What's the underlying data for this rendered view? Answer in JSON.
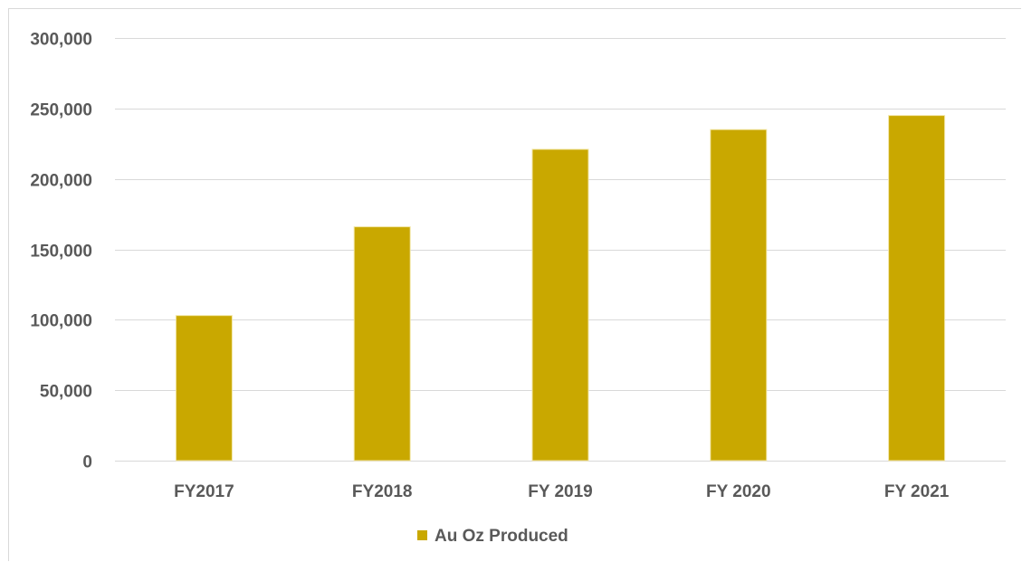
{
  "chart_data": {
    "type": "bar",
    "categories": [
      "FY2017",
      "FY2018",
      "FY 2019",
      "FY 2020",
      "FY 2021"
    ],
    "series": [
      {
        "name": "Au Oz Produced",
        "values": [
          103000,
          166000,
          221000,
          235000,
          245000
        ],
        "color": "#c9a800"
      }
    ],
    "title": "",
    "xlabel": "",
    "ylabel": "",
    "ylim": [
      0,
      300000
    ],
    "yticks": [
      {
        "value": 0,
        "label": "0"
      },
      {
        "value": 50000,
        "label": "50,000"
      },
      {
        "value": 100000,
        "label": "100,000"
      },
      {
        "value": 150000,
        "label": "150,000"
      },
      {
        "value": 200000,
        "label": "200,000"
      },
      {
        "value": 250000,
        "label": "250,000"
      },
      {
        "value": 300000,
        "label": "300,000"
      }
    ],
    "grid": true,
    "legend": "bottom",
    "gridline_color": "#d9d9d9",
    "bar_edge_color": "#f2e6a6"
  }
}
